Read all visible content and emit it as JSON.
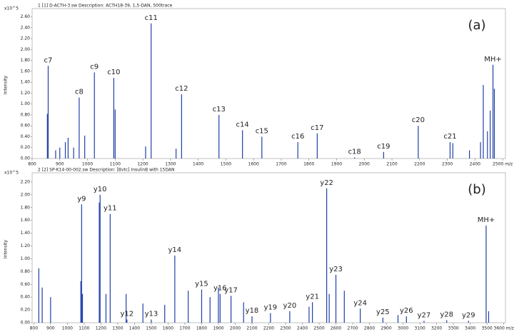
{
  "chart_data": [
    {
      "type": "stem",
      "header": "1 [1] D-ACTH-3.sw  Description: ACTH18-39, 1,5-DAN, 500trace",
      "ylabel": "Intensity",
      "multiplier": "x10^5",
      "panel_label": "(a)",
      "color": "#1f3fa8",
      "x": [
        855,
        858,
        885,
        900,
        920,
        930,
        950,
        970,
        990,
        1025,
        1095,
        1100,
        1210,
        1230,
        1320,
        1340,
        1475,
        1560,
        1630,
        1760,
        1830,
        1965,
        2070,
        2195,
        2310,
        2320,
        2380,
        2420,
        2430,
        2445,
        2455,
        2465,
        2470
      ],
      "values": [
        0.82,
        1.7,
        0.15,
        0.2,
        0.3,
        0.38,
        0.2,
        1.12,
        0.42,
        1.58,
        1.48,
        0.9,
        0.22,
        2.48,
        0.18,
        1.18,
        0.8,
        0.52,
        0.4,
        0.3,
        0.46,
        0.02,
        0.12,
        0.6,
        0.3,
        0.28,
        0.15,
        0.3,
        1.35,
        0.5,
        0.88,
        1.72,
        1.28
      ],
      "labels": [
        null,
        "c7",
        null,
        null,
        null,
        null,
        null,
        "c8",
        null,
        "c9",
        "c10",
        null,
        null,
        "c11",
        null,
        "c12",
        "c13",
        "c14",
        "c15",
        "c16",
        "c17",
        "c18",
        "c19",
        "c20",
        "c21",
        null,
        null,
        null,
        null,
        null,
        null,
        "MH+",
        null
      ],
      "xlim": [
        800,
        2510
      ],
      "ylim": [
        0,
        2.7
      ],
      "xticks": [
        800,
        900,
        1000,
        1100,
        1200,
        1300,
        1400,
        1500,
        1600,
        1700,
        1800,
        1900,
        2000,
        2100,
        2200,
        2300,
        2400,
        {
          "value": 2500,
          "label": "2500 m/z"
        }
      ],
      "yticks": [
        {
          "value": 0,
          "label": "0.00"
        },
        {
          "value": 0.2,
          "label": "0.20"
        },
        {
          "value": 0.4,
          "label": "0.40"
        },
        {
          "value": 0.6,
          "label": "0.60"
        },
        {
          "value": 0.8,
          "label": "0.80"
        },
        {
          "value": 1.0,
          "label": "1.00"
        },
        {
          "value": 1.2,
          "label": "1.20"
        },
        {
          "value": 1.4,
          "label": "1.40"
        },
        {
          "value": 1.6,
          "label": "1.60"
        },
        {
          "value": 1.8,
          "label": "1.80"
        },
        {
          "value": 2.0,
          "label": "2.00"
        },
        {
          "value": 2.2,
          "label": "2.20"
        },
        {
          "value": 2.4,
          "label": "2.40"
        },
        {
          "value": 2.6,
          "label": "2.60"
        }
      ]
    },
    {
      "type": "stem",
      "header": "2 [2] SP-K14-00-002.sw  Description: [Bvtc] InsulinB with 15DAN",
      "ylabel": "Intensity",
      "multiplier": "x10^5",
      "panel_label": "(b)",
      "color": "#1f3fa8",
      "x": [
        830,
        850,
        900,
        1080,
        1085,
        1090,
        1190,
        1195,
        1230,
        1255,
        1350,
        1355,
        1450,
        1500,
        1580,
        1640,
        1720,
        1800,
        1850,
        1900,
        1910,
        1975,
        2050,
        2100,
        2210,
        2325,
        2440,
        2460,
        2545,
        2560,
        2600,
        2650,
        2745,
        2880,
        2970,
        3020,
        3125,
        3260,
        3390,
        3495,
        3510
      ],
      "values": [
        0.85,
        0.55,
        0.4,
        0.65,
        1.85,
        0.45,
        1.88,
        2.0,
        0.45,
        1.7,
        0.45,
        0.05,
        0.3,
        0.05,
        0.28,
        1.05,
        0.5,
        0.52,
        0.4,
        0.55,
        0.45,
        0.42,
        0.32,
        0.1,
        0.15,
        0.18,
        0.25,
        0.32,
        2.1,
        0.45,
        0.75,
        0.5,
        0.22,
        0.08,
        0.12,
        0.1,
        0.03,
        0.04,
        0.03,
        1.52,
        0.18
      ],
      "labels": [
        null,
        null,
        null,
        null,
        "y9",
        null,
        null,
        "y10",
        null,
        "y11",
        null,
        "y12",
        null,
        "y13",
        null,
        "y14",
        null,
        "y15",
        null,
        null,
        "y16",
        "y17",
        null,
        "y18",
        "y19",
        "y20",
        null,
        "y21",
        "y22",
        null,
        "y23",
        null,
        "y24",
        "y25",
        null,
        "y26",
        "y27",
        "y28",
        "y29",
        "MH+",
        null
      ],
      "xlim": [
        790,
        3610
      ],
      "ylim": [
        0,
        2.3
      ],
      "xticks": [
        800,
        900,
        1000,
        1100,
        1200,
        1300,
        1400,
        1500,
        1600,
        1700,
        1800,
        1900,
        2000,
        2100,
        2200,
        2300,
        2400,
        2500,
        2600,
        2700,
        2800,
        2900,
        3000,
        3100,
        3200,
        3300,
        3400,
        3500,
        {
          "value": 3600,
          "label": "3600 m/z"
        }
      ],
      "yticks": [
        {
          "value": 0,
          "label": "0.00"
        },
        {
          "value": 0.2,
          "label": "0.20"
        },
        {
          "value": 0.4,
          "label": "0.40"
        },
        {
          "value": 0.6,
          "label": "0.60"
        },
        {
          "value": 0.8,
          "label": "0.80"
        },
        {
          "value": 1.0,
          "label": "1.00"
        },
        {
          "value": 1.2,
          "label": "1.20"
        },
        {
          "value": 1.4,
          "label": "1.40"
        },
        {
          "value": 1.6,
          "label": "1.60"
        },
        {
          "value": 1.8,
          "label": "1.80"
        },
        {
          "value": 2.0,
          "label": "2.00"
        },
        {
          "value": 2.2,
          "label": "2.20"
        }
      ]
    }
  ]
}
